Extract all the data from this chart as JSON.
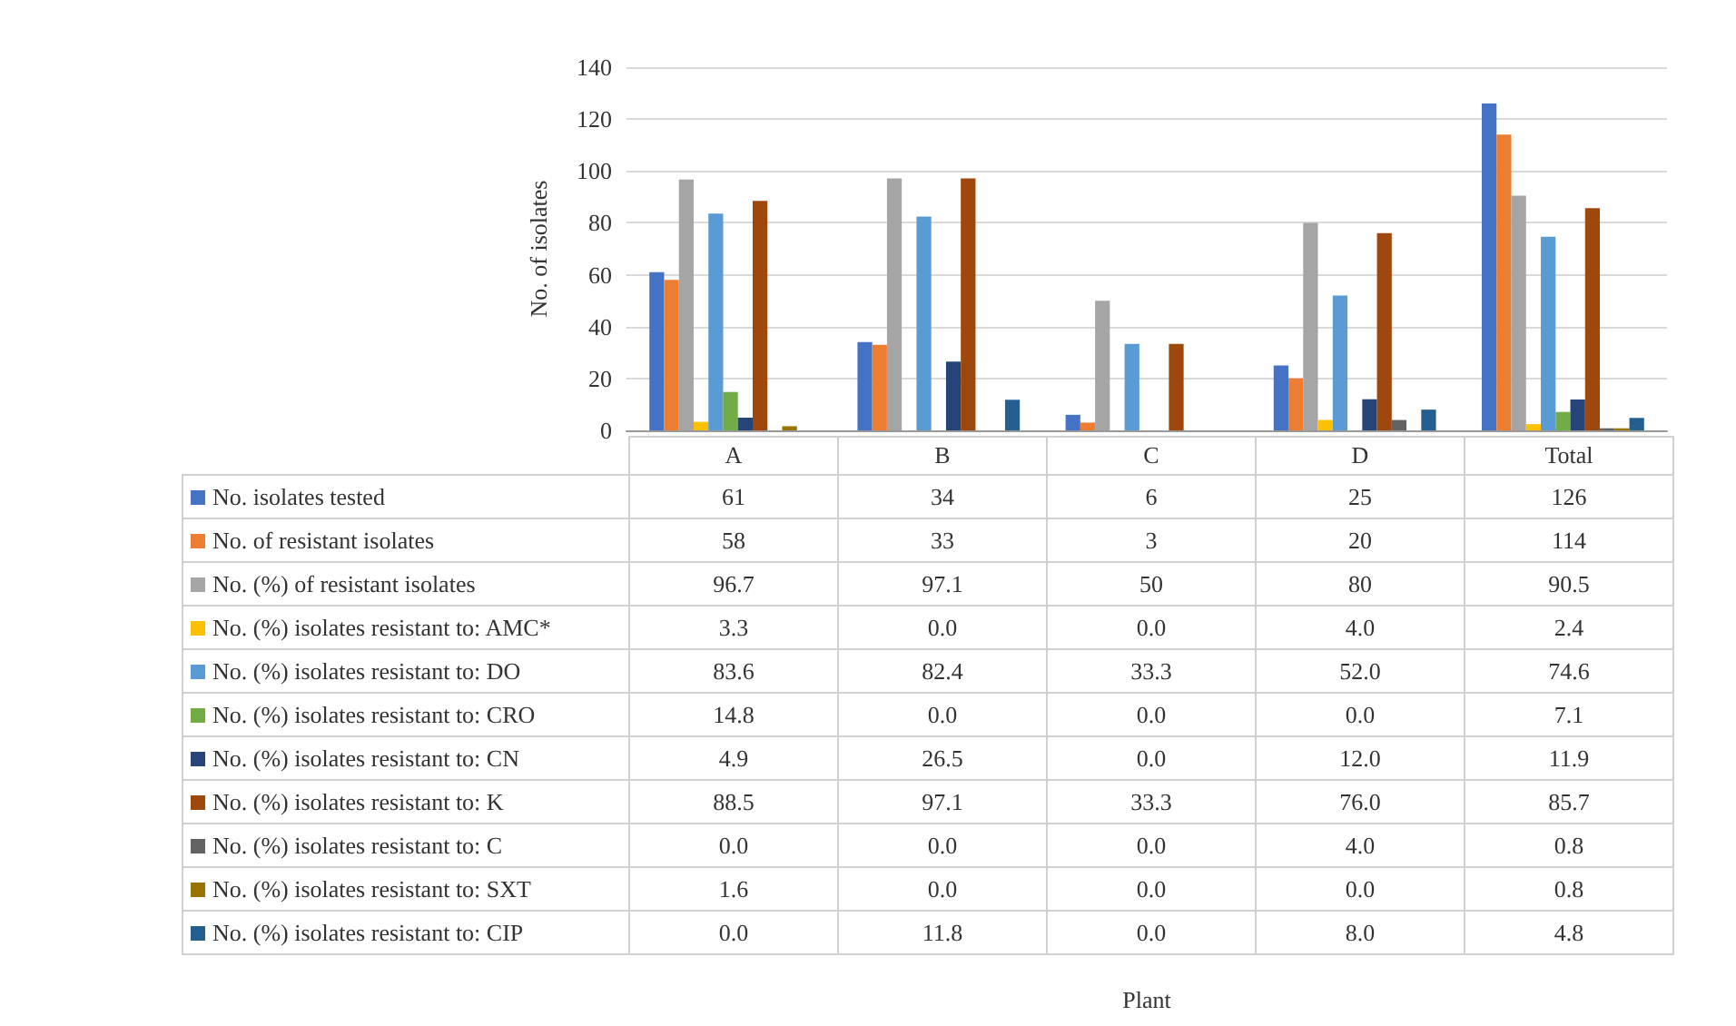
{
  "chart_data": {
    "type": "bar",
    "annotations": [
      "Plant"
    ],
    "ylabel": "No. of isolates",
    "categories": [
      "A",
      "B",
      "C",
      "D",
      "Total"
    ],
    "ylim": [
      0,
      140
    ],
    "yticks": [
      0,
      20,
      40,
      60,
      80,
      100,
      120,
      140
    ],
    "grid": "y",
    "legend": "bottom",
    "series": [
      {
        "name": "No. isolates tested",
        "color": "#4472c4",
        "values": [
          61,
          34,
          6,
          25,
          126
        ],
        "value_labels": [
          "61",
          "34",
          "6",
          "25",
          "126"
        ]
      },
      {
        "name": "No. of resistant isolates",
        "color": "#ed7d31",
        "values": [
          58,
          33,
          3,
          20,
          114
        ],
        "value_labels": [
          "58",
          "33",
          "3",
          "20",
          "114"
        ]
      },
      {
        "name": "No. (%) of resistant isolates",
        "color": "#a5a5a5",
        "values": [
          96.7,
          97.1,
          50,
          80,
          90.5
        ],
        "value_labels": [
          "96.7",
          "97.1",
          "50",
          "80",
          "90.5"
        ]
      },
      {
        "name": "No. (%) isolates resistant to: AMC*",
        "color": "#ffc000",
        "values": [
          3.3,
          0,
          0,
          4,
          2.4
        ],
        "value_labels": [
          "3.3",
          "0.0",
          "0.0",
          "4.0",
          "2.4"
        ]
      },
      {
        "name": "No. (%) isolates resistant to: DO",
        "color": "#5b9bd5",
        "values": [
          83.6,
          82.4,
          33.3,
          52,
          74.6
        ],
        "value_labels": [
          "83.6",
          "82.4",
          "33.3",
          "52.0",
          "74.6"
        ]
      },
      {
        "name": "No. (%) isolates resistant to: CRO",
        "color": "#70ad47",
        "values": [
          14.8,
          0,
          0,
          0,
          7.1
        ],
        "value_labels": [
          "14.8",
          "0.0",
          "0.0",
          "0.0",
          "7.1"
        ]
      },
      {
        "name": "No. (%) isolates resistant to: CN",
        "color": "#264478",
        "values": [
          4.9,
          26.5,
          0,
          12,
          11.9
        ],
        "value_labels": [
          "4.9",
          "26.5",
          "0.0",
          "12.0",
          "11.9"
        ]
      },
      {
        "name": "No. (%) isolates resistant to: K",
        "color": "#9e480e",
        "values": [
          88.5,
          97.1,
          33.3,
          76,
          85.7
        ],
        "value_labels": [
          "88.5",
          "97.1",
          "33.3",
          "76.0",
          "85.7"
        ]
      },
      {
        "name": "No. (%) isolates resistant to: C",
        "color": "#636363",
        "values": [
          0,
          0,
          0,
          4,
          0.8
        ],
        "value_labels": [
          "0.0",
          "0.0",
          "0.0",
          "4.0",
          "0.8"
        ]
      },
      {
        "name": "No. (%) isolates resistant to: SXT",
        "color": "#997300",
        "values": [
          1.6,
          0,
          0,
          0,
          0.8
        ],
        "value_labels": [
          "1.6",
          "0.0",
          "0.0",
          "0.0",
          "0.8"
        ]
      },
      {
        "name": "No. (%) isolates resistant to: CIP",
        "color": "#255e91",
        "values": [
          0,
          11.8,
          0,
          8,
          4.8
        ],
        "value_labels": [
          "0.0",
          "11.8",
          "0.0",
          "8.0",
          "4.8"
        ]
      }
    ]
  }
}
